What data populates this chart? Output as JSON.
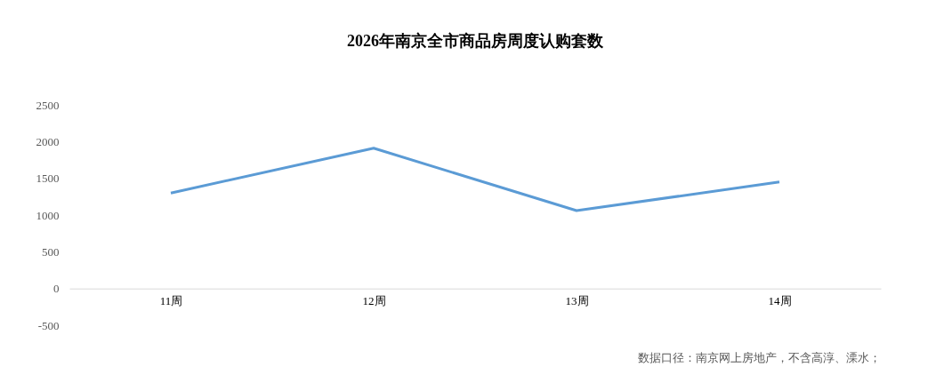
{
  "chart_data": {
    "type": "line",
    "title": "2026年南京全市商品房周度认购套数",
    "categories": [
      "11周",
      "12周",
      "13周",
      "14周"
    ],
    "series": [
      {
        "color": "#5b9bd5",
        "values": [
          1300,
          1910,
          1060,
          1450
        ]
      }
    ],
    "ylim": [
      -500,
      2500
    ],
    "yticks": [
      -500,
      0,
      500,
      1000,
      1500,
      2000,
      2500
    ],
    "grid": false,
    "legend": false,
    "marker": "none",
    "line_style": "solid",
    "annotations": [
      "数据口径：南京网上房地产，不含高淳、溧水；"
    ]
  }
}
